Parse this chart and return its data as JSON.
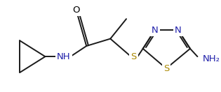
{
  "bg_color": "#ffffff",
  "bond_color": "#1a1a1a",
  "atom_colors": {
    "O": "#000000",
    "N": "#2020aa",
    "S": "#aa8800",
    "NH": "#2020aa",
    "NH2": "#2020aa"
  },
  "line_width": 1.4,
  "font_size": 9.5
}
